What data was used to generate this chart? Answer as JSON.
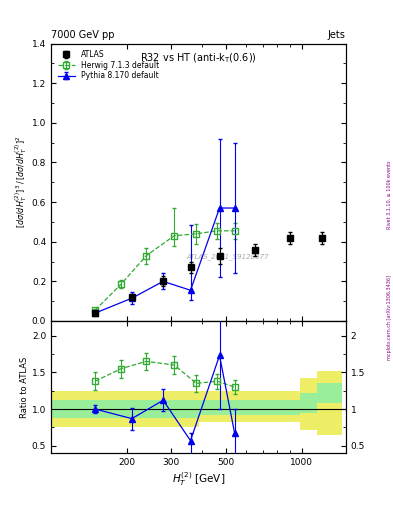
{
  "title": "R32 vs HT (anti-k_{T}(0.6))",
  "top_left_label": "7000 GeV pp",
  "top_right_label": "Jets",
  "watermark": "ATLAS_2011_S9128077",
  "right_label_top": "Rivet 3.1.10, ≥ 100k events",
  "right_label_bot": "mcplots.cern.ch [arXiv:1306.3436]",
  "atlas_x": [
    150,
    210,
    280,
    360,
    470,
    650,
    900,
    1200
  ],
  "atlas_y": [
    0.04,
    0.12,
    0.2,
    0.27,
    0.33,
    0.36,
    0.42,
    0.42
  ],
  "atlas_yerr": [
    0.008,
    0.015,
    0.025,
    0.03,
    0.04,
    0.03,
    0.03,
    0.03
  ],
  "herwig_x": [
    150,
    190,
    240,
    310,
    380,
    460,
    540
  ],
  "herwig_y": [
    0.055,
    0.185,
    0.33,
    0.43,
    0.44,
    0.455,
    0.455
  ],
  "herwig_yerr_lo": [
    0.008,
    0.02,
    0.04,
    0.05,
    0.05,
    0.04,
    0.04
  ],
  "herwig_yerr_hi": [
    0.008,
    0.02,
    0.04,
    0.14,
    0.05,
    0.04,
    0.04
  ],
  "pythia_x": [
    150,
    210,
    280,
    360,
    470,
    540
  ],
  "pythia_y": [
    0.04,
    0.115,
    0.2,
    0.155,
    0.57,
    0.57
  ],
  "pythia_yerr_lo": [
    0.008,
    0.03,
    0.04,
    0.05,
    0.35,
    0.33
  ],
  "pythia_yerr_hi": [
    0.008,
    0.03,
    0.04,
    0.33,
    0.35,
    0.33
  ],
  "herwig_ratio_x": [
    150,
    190,
    240,
    310,
    380,
    460,
    540
  ],
  "herwig_ratio_y": [
    1.38,
    1.55,
    1.65,
    1.6,
    1.35,
    1.38,
    1.3
  ],
  "herwig_ratio_err": [
    0.12,
    0.12,
    0.12,
    0.12,
    0.12,
    0.1,
    0.1
  ],
  "pythia_ratio_x": [
    150,
    210,
    280,
    360,
    470,
    540
  ],
  "pythia_ratio_y": [
    1.0,
    0.87,
    1.12,
    0.57,
    1.73,
    0.67
  ],
  "pythia_ratio_yerr_lo": [
    0.05,
    0.15,
    0.15,
    0.43,
    0.73,
    0.33
  ],
  "pythia_ratio_yerr_hi": [
    0.05,
    0.15,
    0.15,
    0.1,
    0.5,
    0.33
  ],
  "band_edges": [
    100,
    390,
    560,
    780,
    980,
    1150,
    1450
  ],
  "band_yellow_lo": [
    0.75,
    0.82,
    0.82,
    0.82,
    0.72,
    0.65,
    0.65
  ],
  "band_yellow_hi": [
    1.25,
    1.25,
    1.25,
    1.25,
    1.42,
    1.52,
    1.52
  ],
  "band_green_lo": [
    0.88,
    0.92,
    0.92,
    0.92,
    0.95,
    1.08,
    1.08
  ],
  "band_green_hi": [
    1.12,
    1.12,
    1.12,
    1.12,
    1.22,
    1.35,
    1.35
  ],
  "main_ylim": [
    0.0,
    1.4
  ],
  "ratio_ylim": [
    0.4,
    2.2
  ],
  "xlim": [
    100,
    1500
  ],
  "atlas_color": "#000000",
  "herwig_color": "#33aa33",
  "pythia_color": "#0000ee",
  "green_band_color": "#99ee99",
  "yellow_band_color": "#eeee66"
}
